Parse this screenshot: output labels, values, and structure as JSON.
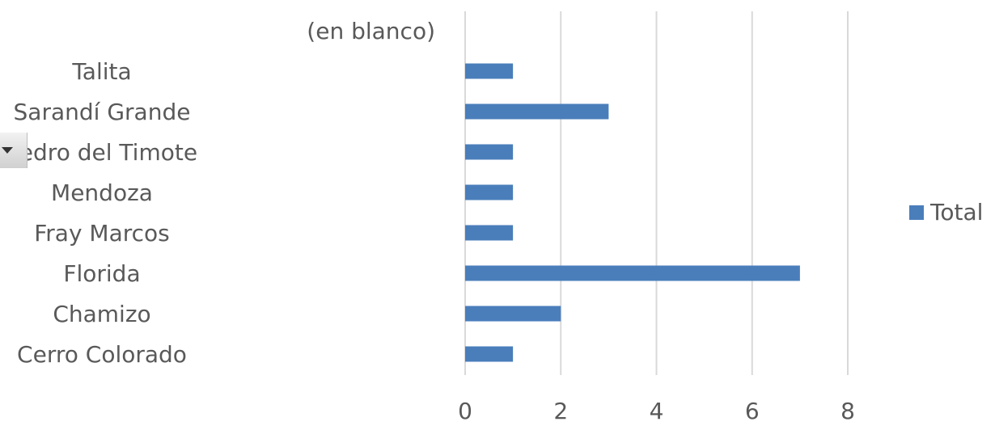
{
  "chart_data": {
    "type": "bar",
    "orientation": "horizontal",
    "categories": [
      "Cerro Colorado",
      "Chamizo",
      "Florida",
      "Fray Marcos",
      "Mendoza",
      "Pedro del Timote",
      "Sarandí Grande",
      "Talita",
      "(en blanco)"
    ],
    "series": [
      {
        "name": "Total",
        "values": [
          1,
          2,
          7,
          1,
          1,
          1,
          3,
          1,
          null
        ]
      }
    ],
    "xlim": [
      0,
      8
    ],
    "xticks": [
      0,
      2,
      4,
      6,
      8
    ],
    "grid": true,
    "legend_position": "right",
    "colors": {
      "series": "#4a7ebb",
      "grid": "#d9d9d9",
      "text": "#595959"
    }
  },
  "ui": {
    "expand_icon": "triangle-down-icon"
  }
}
